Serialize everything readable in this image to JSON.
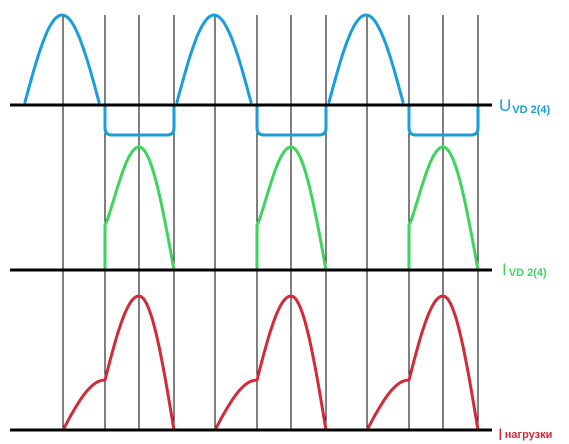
{
  "colors": {
    "voltage": "#1a9ed9",
    "diode_current": "#3dd65c",
    "load_current": "#d42a35",
    "axis": "#000000",
    "grid": "#000000"
  },
  "labels": {
    "voltage": {
      "main": "U",
      "sub": "VD 2(4)"
    },
    "diode_current": {
      "main": "I",
      "sub": "VD 2(4)"
    },
    "load_current": {
      "main": "I",
      "sub": "нагрузки"
    }
  },
  "periods": 3
}
